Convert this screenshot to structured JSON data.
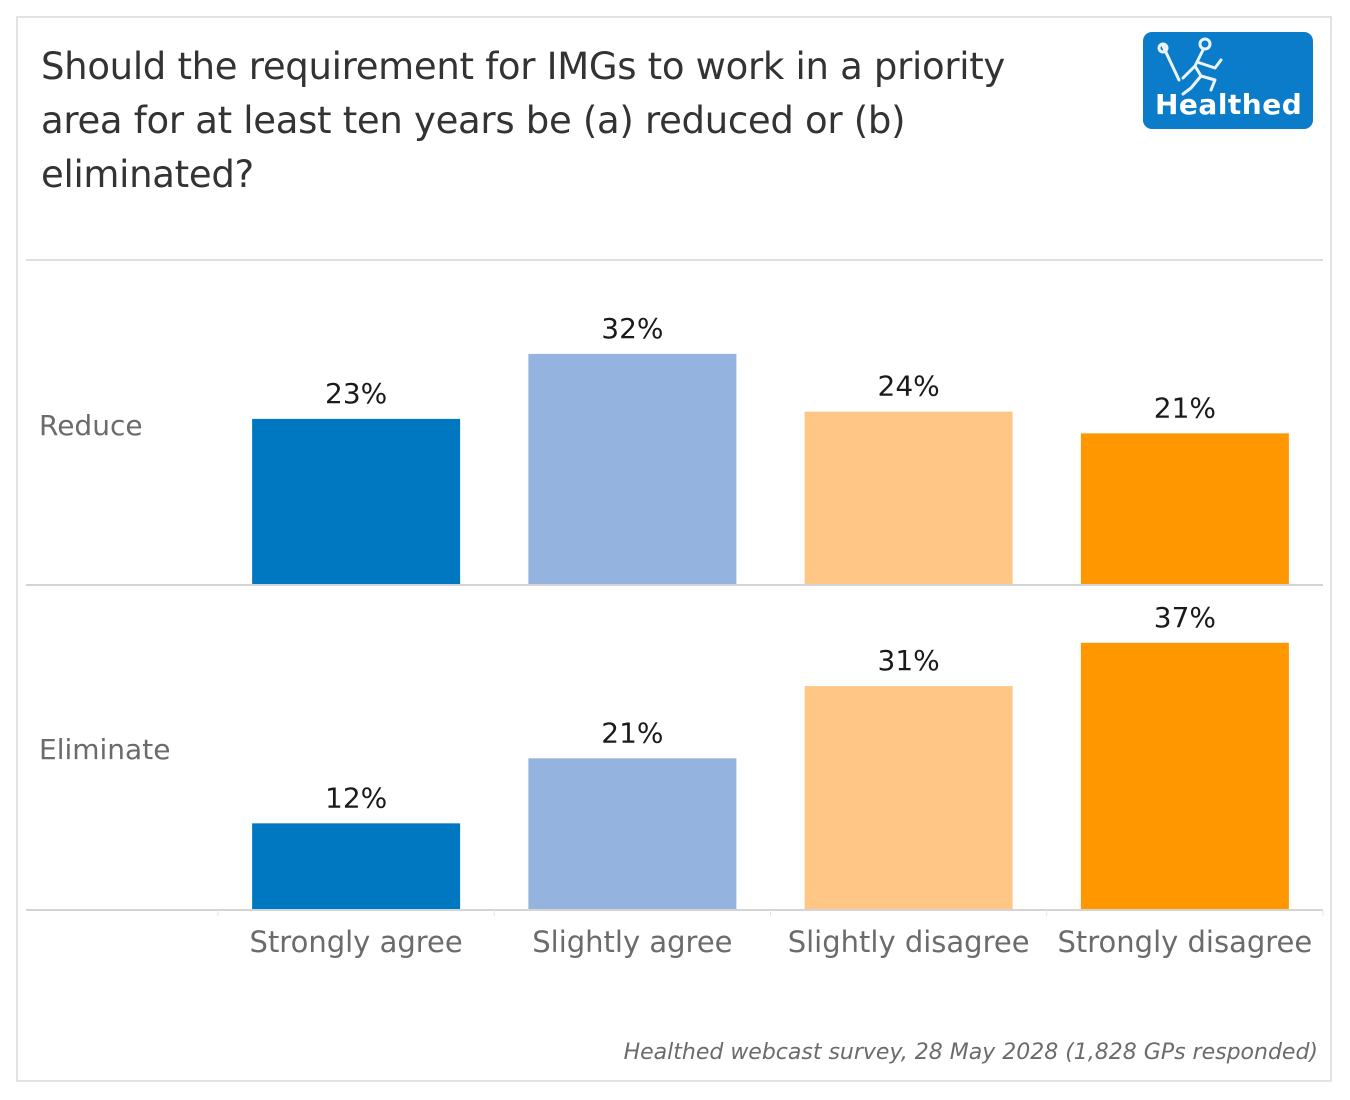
{
  "title": "Should the requirement for IMGs to work in a priority area for at least ten years be (a) reduced or (b) eliminated?",
  "title_lines": [
    "Should the requirement for IMGs to work in a priority",
    "area for at least ten years be (a) reduced or (b)",
    "eliminated?"
  ],
  "logo": {
    "text": "Healthed",
    "icon": "hermes-runner-icon",
    "color": "#0a7cc9"
  },
  "source": "Healthed webcast survey, 28 May 2028 (1,828 GPs responded)",
  "chart_data": {
    "type": "bar",
    "title": "Should the requirement for IMGs to work in a priority area for at least ten years be (a) reduced or (b) eliminated?",
    "xlabel": "",
    "ylabel": "",
    "categories": [
      "Strongly agree",
      "Slightly agree",
      "Slightly disagree",
      "Strongly disagree"
    ],
    "colors": [
      "#0077c1",
      "#94b3de",
      "#ffc685",
      "#ff9700"
    ],
    "rows": [
      {
        "name": "Reduce",
        "values": [
          23,
          32,
          24,
          21
        ],
        "labels": [
          "23%",
          "32%",
          "24%",
          "21%"
        ]
      },
      {
        "name": "Eliminate",
        "values": [
          12,
          21,
          31,
          37
        ],
        "labels": [
          "12%",
          "21%",
          "31%",
          "37%"
        ]
      }
    ],
    "unit": "%",
    "ylim": [
      0,
      45
    ],
    "grid": false,
    "legend": "none"
  }
}
